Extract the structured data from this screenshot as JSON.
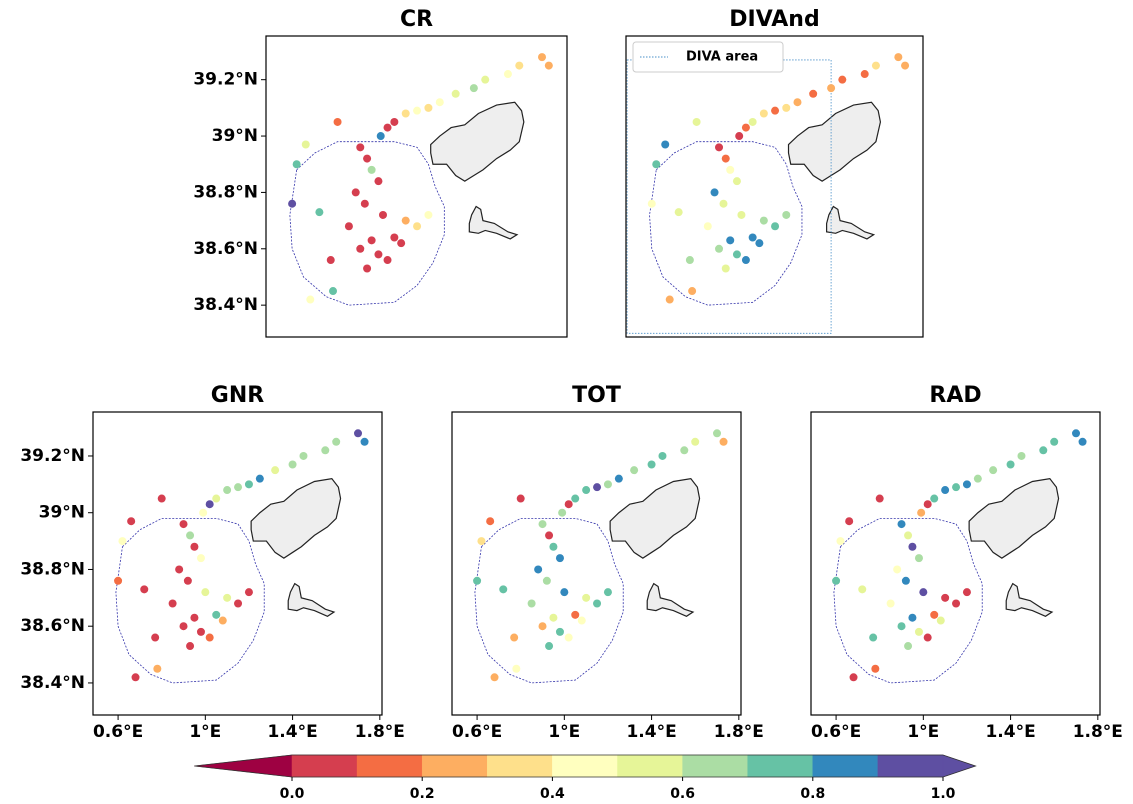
{
  "chart_data": [
    {
      "type": "scatter",
      "title": "CR",
      "x": [
        1.7,
        1.73,
        1.6,
        1.55,
        1.45,
        1.4,
        1.32,
        1.25,
        1.2,
        1.15,
        1.1,
        1.05,
        1.02,
        0.99,
        0.62,
        0.6,
        0.72,
        0.68,
        0.78,
        0.8,
        0.66,
        0.9,
        0.93,
        0.95,
        0.98,
        0.88,
        0.92,
        1.0,
        1.1,
        1.15,
        1.05,
        0.95,
        0.9,
        0.98,
        1.02,
        0.93,
        0.77,
        0.85,
        1.2,
        1.08
      ],
      "y": [
        39.28,
        39.25,
        39.25,
        39.22,
        39.2,
        39.17,
        39.15,
        39.12,
        39.1,
        39.09,
        39.08,
        39.05,
        39.03,
        39.0,
        38.9,
        38.76,
        38.73,
        38.42,
        38.45,
        39.05,
        38.97,
        38.96,
        38.92,
        38.88,
        38.84,
        38.8,
        38.76,
        38.72,
        38.7,
        38.68,
        38.64,
        38.63,
        38.6,
        38.58,
        38.56,
        38.53,
        38.56,
        38.68,
        38.72,
        38.62
      ],
      "values": [
        0.25,
        0.2,
        0.3,
        0.45,
        0.5,
        0.6,
        0.55,
        0.45,
        0.35,
        0.4,
        0.3,
        0.0,
        0.05,
        0.85,
        0.75,
        0.95,
        0.75,
        0.45,
        0.75,
        0.15,
        0.5,
        0.0,
        0.0,
        0.6,
        0.0,
        0.0,
        0.0,
        0.05,
        0.25,
        0.35,
        0.0,
        0.0,
        0.0,
        0.0,
        0.0,
        0.0,
        0.0,
        0.0,
        0.4,
        0.05
      ],
      "xlim": [
        0.485,
        1.81
      ],
      "ylim": [
        38.287,
        39.355
      ],
      "yticks": [
        {
          "value": 38.4,
          "label": "38.4°N"
        },
        {
          "value": 38.6,
          "label": "38.6°N"
        },
        {
          "value": 38.8,
          "label": "38.8°N"
        },
        {
          "value": 39,
          "label": "39°N"
        },
        {
          "value": 39.2,
          "label": "39.2°N"
        }
      ]
    },
    {
      "type": "scatter",
      "title": "DIVAnd",
      "x": [
        1.7,
        1.73,
        1.6,
        1.55,
        1.45,
        1.4,
        1.32,
        1.25,
        1.2,
        1.15,
        1.1,
        1.05,
        1.02,
        0.99,
        0.62,
        0.6,
        0.72,
        0.68,
        0.78,
        0.8,
        0.66,
        0.9,
        0.93,
        0.95,
        0.98,
        0.88,
        0.92,
        1.0,
        1.1,
        1.15,
        1.05,
        0.95,
        0.9,
        0.98,
        1.02,
        0.93,
        0.77,
        0.85,
        1.2,
        1.08
      ],
      "y": [
        39.28,
        39.25,
        39.25,
        39.22,
        39.2,
        39.17,
        39.15,
        39.12,
        39.1,
        39.09,
        39.08,
        39.05,
        39.03,
        39.0,
        38.9,
        38.76,
        38.73,
        38.42,
        38.45,
        39.05,
        38.97,
        38.96,
        38.92,
        38.88,
        38.84,
        38.8,
        38.76,
        38.72,
        38.7,
        38.68,
        38.64,
        38.63,
        38.6,
        38.58,
        38.56,
        38.53,
        38.56,
        38.68,
        38.72,
        38.62
      ],
      "values": [
        0.25,
        0.25,
        0.3,
        0.15,
        0.1,
        0.2,
        0.1,
        0.25,
        0.3,
        0.15,
        0.35,
        0.55,
        0.1,
        0.05,
        0.75,
        0.45,
        0.55,
        0.25,
        0.25,
        0.55,
        0.85,
        0.05,
        0.15,
        0.45,
        0.55,
        0.85,
        0.5,
        0.55,
        0.65,
        0.75,
        0.85,
        0.8,
        0.65,
        0.75,
        0.85,
        0.55,
        0.6,
        0.45,
        0.6,
        0.85
      ],
      "xlim": [
        0.485,
        1.81
      ],
      "ylim": [
        38.287,
        39.355
      ],
      "area": {
        "name": "DIVA area",
        "xlim": [
          0.49,
          1.4
        ],
        "ylim": [
          38.3,
          39.27
        ]
      }
    },
    {
      "type": "scatter",
      "title": "GNR",
      "x": [
        1.7,
        1.73,
        1.6,
        1.55,
        1.45,
        1.4,
        1.32,
        1.25,
        1.2,
        1.15,
        1.1,
        1.05,
        1.02,
        0.99,
        0.62,
        0.6,
        0.72,
        0.68,
        0.78,
        0.8,
        0.66,
        0.9,
        0.93,
        0.95,
        0.98,
        0.88,
        0.92,
        1.0,
        1.1,
        1.15,
        1.05,
        0.95,
        0.9,
        0.98,
        1.02,
        0.93,
        0.77,
        0.85,
        1.2,
        1.08
      ],
      "y": [
        39.28,
        39.25,
        39.25,
        39.22,
        39.2,
        39.17,
        39.15,
        39.12,
        39.1,
        39.09,
        39.08,
        39.05,
        39.03,
        39.0,
        38.9,
        38.76,
        38.73,
        38.42,
        38.45,
        39.05,
        38.97,
        38.96,
        38.92,
        38.88,
        38.84,
        38.8,
        38.76,
        38.72,
        38.7,
        38.68,
        38.64,
        38.63,
        38.6,
        38.58,
        38.56,
        38.53,
        38.56,
        38.68,
        38.72,
        38.62
      ],
      "values": [
        0.95,
        0.85,
        0.6,
        0.65,
        0.65,
        0.6,
        0.55,
        0.85,
        0.7,
        0.65,
        0.6,
        0.5,
        0.95,
        0.45,
        0.45,
        0.15,
        0.05,
        0.0,
        0.25,
        0.0,
        0.05,
        0.0,
        0.6,
        0.0,
        0.45,
        0.0,
        0.05,
        0.55,
        0.55,
        0.05,
        0.7,
        0.0,
        0.0,
        0.0,
        0.15,
        0.0,
        0.05,
        0.0,
        0.0,
        0.2
      ],
      "xlim": [
        0.485,
        1.81
      ],
      "ylim": [
        38.287,
        39.355
      ],
      "xticks": [
        {
          "value": 0.6,
          "label": "0.6°E"
        },
        {
          "value": 1,
          "label": "1°E"
        },
        {
          "value": 1.4,
          "label": "1.4°E"
        },
        {
          "value": 1.8,
          "label": "1.8°E"
        }
      ],
      "yticks": [
        {
          "value": 38.4,
          "label": "38.4°N"
        },
        {
          "value": 38.6,
          "label": "38.6°N"
        },
        {
          "value": 38.8,
          "label": "38.8°N"
        },
        {
          "value": 39,
          "label": "39°N"
        },
        {
          "value": 39.2,
          "label": "39.2°N"
        }
      ]
    },
    {
      "type": "scatter",
      "title": "TOT",
      "x": [
        1.7,
        1.73,
        1.6,
        1.55,
        1.45,
        1.4,
        1.32,
        1.25,
        1.2,
        1.15,
        1.1,
        1.05,
        1.02,
        0.99,
        0.62,
        0.6,
        0.72,
        0.68,
        0.78,
        0.8,
        0.66,
        0.9,
        0.93,
        0.95,
        0.98,
        0.88,
        0.92,
        1.0,
        1.1,
        1.15,
        1.05,
        0.95,
        0.9,
        0.98,
        1.02,
        0.93,
        0.77,
        0.85,
        1.2,
        1.08
      ],
      "y": [
        39.28,
        39.25,
        39.25,
        39.22,
        39.2,
        39.17,
        39.15,
        39.12,
        39.1,
        39.09,
        39.08,
        39.05,
        39.03,
        39.0,
        38.9,
        38.76,
        38.73,
        38.42,
        38.45,
        39.05,
        38.97,
        38.96,
        38.92,
        38.88,
        38.84,
        38.8,
        38.76,
        38.72,
        38.7,
        38.68,
        38.64,
        38.63,
        38.6,
        38.58,
        38.56,
        38.53,
        38.56,
        38.68,
        38.72,
        38.62
      ],
      "values": [
        0.65,
        0.25,
        0.55,
        0.6,
        0.7,
        0.75,
        0.65,
        0.85,
        0.6,
        0.95,
        0.75,
        0.7,
        0.05,
        0.6,
        0.35,
        0.75,
        0.75,
        0.25,
        0.45,
        0.0,
        0.15,
        0.6,
        0.05,
        0.75,
        0.85,
        0.85,
        0.6,
        0.85,
        0.5,
        0.7,
        0.15,
        0.55,
        0.2,
        0.75,
        0.45,
        0.75,
        0.25,
        0.65,
        0.75,
        0.45
      ],
      "xlim": [
        0.485,
        1.81
      ],
      "ylim": [
        38.287,
        39.355
      ],
      "xticks": [
        {
          "value": 0.6,
          "label": "0.6°E"
        },
        {
          "value": 1,
          "label": "1°E"
        },
        {
          "value": 1.4,
          "label": "1.4°E"
        },
        {
          "value": 1.8,
          "label": "1.8°E"
        }
      ]
    },
    {
      "type": "scatter",
      "title": "RAD",
      "x": [
        1.7,
        1.73,
        1.6,
        1.55,
        1.45,
        1.4,
        1.32,
        1.25,
        1.2,
        1.15,
        1.1,
        1.05,
        1.02,
        0.99,
        0.62,
        0.6,
        0.72,
        0.68,
        0.78,
        0.8,
        0.66,
        0.9,
        0.93,
        0.95,
        0.98,
        0.88,
        0.92,
        1.0,
        1.1,
        1.15,
        1.05,
        0.95,
        0.9,
        0.98,
        1.02,
        0.93,
        0.77,
        0.85,
        1.2,
        1.08
      ],
      "y": [
        39.28,
        39.25,
        39.25,
        39.22,
        39.2,
        39.17,
        39.15,
        39.12,
        39.1,
        39.09,
        39.08,
        39.05,
        39.03,
        39.0,
        38.9,
        38.76,
        38.73,
        38.42,
        38.45,
        39.05,
        38.97,
        38.96,
        38.92,
        38.88,
        38.84,
        38.8,
        38.76,
        38.72,
        38.7,
        38.68,
        38.64,
        38.63,
        38.6,
        38.58,
        38.56,
        38.53,
        38.56,
        38.68,
        38.72,
        38.62
      ],
      "values": [
        0.85,
        0.85,
        0.75,
        0.7,
        0.65,
        0.7,
        0.65,
        0.6,
        0.85,
        0.75,
        0.85,
        0.7,
        0.0,
        0.2,
        0.45,
        0.75,
        0.55,
        0.05,
        0.15,
        0.0,
        0.0,
        0.85,
        0.5,
        0.95,
        0.6,
        0.45,
        0.85,
        0.95,
        0.05,
        0.05,
        0.15,
        0.85,
        0.7,
        0.55,
        0.0,
        0.6,
        0.75,
        0.45,
        0.0,
        0.5
      ],
      "xlim": [
        0.485,
        1.81
      ],
      "ylim": [
        38.287,
        39.355
      ],
      "xticks": [
        {
          "value": 0.6,
          "label": "0.6°E"
        },
        {
          "value": 1,
          "label": "1°E"
        },
        {
          "value": 1.4,
          "label": "1.4°E"
        },
        {
          "value": 1.8,
          "label": "1.8°E"
        }
      ]
    },
    {
      "type": "colorbar",
      "bounds": [
        -0.15,
        0,
        0.1,
        0.2,
        0.3,
        0.4,
        0.5,
        0.6,
        0.7,
        0.8,
        0.9,
        1.0,
        1.05
      ],
      "colors": [
        "#9e0142",
        "#d53e4f",
        "#f46d43",
        "#fdae61",
        "#fee08b",
        "#ffffbf",
        "#e6f598",
        "#abdda4",
        "#66c2a5",
        "#3288bd",
        "#5e4fa2",
        "#5e4fa2"
      ],
      "ticks": [
        {
          "value": 0,
          "label": "0.0"
        },
        0.2,
        0.4,
        0.6,
        0.8,
        {
          "value": 1,
          "label": "1.0"
        }
      ]
    }
  ]
}
